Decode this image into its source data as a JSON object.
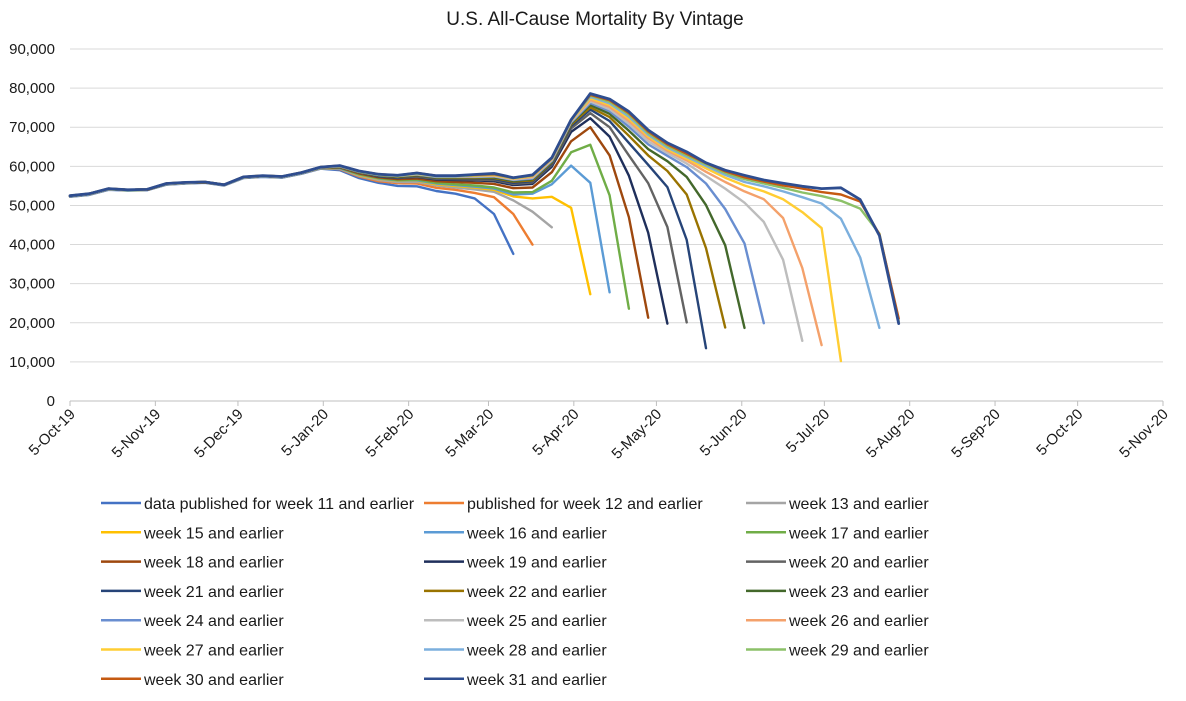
{
  "chart_data": {
    "type": "line",
    "title": "U.S. All-Cause Mortality By Vintage",
    "xlabel": "",
    "ylabel": "",
    "ylim": [
      0,
      90000
    ],
    "y_ticks": [
      0,
      10000,
      20000,
      30000,
      40000,
      50000,
      60000,
      70000,
      80000,
      90000
    ],
    "y_tick_labels": [
      "0",
      "10,000",
      "20,000",
      "30,000",
      "40,000",
      "50,000",
      "60,000",
      "70,000",
      "80,000",
      "90,000"
    ],
    "x_range": [
      "2019-10-05",
      "2020-11-05"
    ],
    "x_ticks": [
      "2019-10-05",
      "2019-11-05",
      "2019-12-05",
      "2020-01-05",
      "2020-02-05",
      "2020-03-05",
      "2020-04-05",
      "2020-05-05",
      "2020-06-05",
      "2020-07-05",
      "2020-08-05",
      "2020-09-05",
      "2020-10-05",
      "2020-11-05"
    ],
    "x_tick_labels": [
      "5-Oct-19",
      "5-Nov-19",
      "5-Dec-19",
      "5-Jan-20",
      "5-Feb-20",
      "5-Mar-20",
      "5-Apr-20",
      "5-May-20",
      "5-Jun-20",
      "5-Jul-20",
      "5-Aug-20",
      "5-Sep-20",
      "5-Oct-20",
      "5-Nov-20"
    ],
    "grid": "horizontal",
    "legend_position": "bottom",
    "x_dates": [
      "2019-10-05",
      "2019-10-12",
      "2019-10-19",
      "2019-10-26",
      "2019-11-02",
      "2019-11-09",
      "2019-11-16",
      "2019-11-23",
      "2019-11-30",
      "2019-12-07",
      "2019-12-14",
      "2019-12-21",
      "2019-12-28",
      "2020-01-04",
      "2020-01-11",
      "2020-01-18",
      "2020-01-25",
      "2020-02-01",
      "2020-02-08",
      "2020-02-15",
      "2020-02-22",
      "2020-02-29",
      "2020-03-07",
      "2020-03-14",
      "2020-03-21",
      "2020-03-28",
      "2020-04-04",
      "2020-04-11",
      "2020-04-18",
      "2020-04-25",
      "2020-05-02",
      "2020-05-09",
      "2020-05-16",
      "2020-05-23",
      "2020-05-30",
      "2020-06-06",
      "2020-06-13",
      "2020-06-20",
      "2020-06-27",
      "2020-07-04",
      "2020-07-11",
      "2020-07-18",
      "2020-07-25",
      "2020-08-01"
    ],
    "common_values": [
      52500,
      53000,
      54300,
      54000,
      54100,
      55600,
      55900,
      56000,
      55300,
      57300,
      57600,
      57400,
      58400,
      59800,
      60200,
      58800,
      58000,
      57700,
      58300,
      57600,
      57600,
      57900,
      58200,
      57100,
      57800,
      62200,
      71900,
      78600
    ],
    "series": [
      {
        "name": "data published for week 11 and earlier",
        "color": "#4472c4",
        "width": 2.4,
        "values": [
          52200,
          52700,
          54000,
          53800,
          53900,
          55300,
          55600,
          55800,
          55100,
          57000,
          57300,
          57100,
          58100,
          59400,
          59000,
          57000,
          55800,
          55000,
          54900,
          53700,
          53000,
          51800,
          47800,
          37600
        ]
      },
      {
        "name": "published for week 12 and earlier",
        "color": "#ed7d31",
        "width": 2.4,
        "values": [
          52300,
          52800,
          54100,
          53900,
          54000,
          55400,
          55700,
          55900,
          55200,
          57100,
          57400,
          57200,
          58200,
          59500,
          59300,
          57400,
          56200,
          55700,
          55600,
          54500,
          54000,
          53200,
          52100,
          47800,
          40000
        ]
      },
      {
        "name": "week 13 and earlier",
        "color": "#a5a5a5",
        "width": 2.4,
        "values": [
          52300,
          52800,
          54100,
          53900,
          54000,
          55400,
          55700,
          55900,
          55200,
          57100,
          57400,
          57200,
          58200,
          59500,
          59400,
          57600,
          56500,
          56000,
          56000,
          55100,
          54600,
          54100,
          53500,
          51300,
          48400,
          44400
        ]
      },
      {
        "name": "week 15 and earlier",
        "color": "#ffc000",
        "width": 2.4,
        "values": [
          52300,
          52800,
          54100,
          53900,
          54000,
          55400,
          55700,
          55900,
          55200,
          57100,
          57400,
          57200,
          58200,
          59600,
          59500,
          57800,
          56800,
          56300,
          56300,
          55400,
          55000,
          54600,
          54000,
          52300,
          51800,
          52200,
          49400,
          27300
        ]
      },
      {
        "name": "week 16 and earlier",
        "color": "#5b9bd5",
        "width": 2.4,
        "values": [
          52300,
          52800,
          54100,
          53900,
          54000,
          55400,
          55700,
          55900,
          55200,
          57100,
          57400,
          57200,
          58200,
          59600,
          59500,
          57900,
          56900,
          56400,
          56400,
          55600,
          55200,
          54800,
          54300,
          52800,
          53000,
          55400,
          60200,
          55800,
          27800
        ]
      },
      {
        "name": "week 17 and earlier",
        "color": "#70ad47",
        "width": 2.4,
        "values": [
          52400,
          52900,
          54200,
          53900,
          54000,
          55500,
          55800,
          55900,
          55300,
          57200,
          57500,
          57300,
          58300,
          59600,
          59600,
          58000,
          57000,
          56500,
          56600,
          55800,
          55400,
          55100,
          54600,
          53300,
          53400,
          56300,
          63600,
          65500,
          52600,
          23600
        ]
      },
      {
        "name": "week 18 and earlier",
        "color": "#9e480e",
        "width": 2.4,
        "values": [
          52400,
          52900,
          54200,
          54000,
          54000,
          55500,
          55800,
          55900,
          55300,
          57200,
          57500,
          57300,
          58300,
          59700,
          59700,
          58200,
          57200,
          56700,
          56900,
          56200,
          56000,
          55800,
          55500,
          54400,
          54600,
          58500,
          66400,
          70000,
          62800,
          47000,
          21300
        ]
      },
      {
        "name": "week 19 and earlier",
        "color": "#1f2f5b",
        "width": 2.4,
        "values": [
          52400,
          52900,
          54200,
          54000,
          54100,
          55500,
          55800,
          56000,
          55300,
          57200,
          57500,
          57300,
          58300,
          59700,
          59800,
          58400,
          57400,
          57000,
          57300,
          56600,
          56500,
          56400,
          56200,
          55200,
          55500,
          59900,
          68800,
          72300,
          67600,
          57600,
          43000,
          19800
        ]
      },
      {
        "name": "week 20 and earlier",
        "color": "#636363",
        "width": 2.4,
        "values": [
          52400,
          52900,
          54200,
          54000,
          54100,
          55500,
          55800,
          56000,
          55300,
          57200,
          57500,
          57300,
          58300,
          59700,
          59800,
          58400,
          57500,
          57100,
          57400,
          56800,
          56700,
          56600,
          56500,
          55500,
          55900,
          60400,
          69700,
          73600,
          70000,
          62800,
          55700,
          44500,
          20100
        ]
      },
      {
        "name": "week 21 and earlier",
        "color": "#264478",
        "width": 2.4,
        "values": [
          52400,
          52900,
          54200,
          54000,
          54100,
          55500,
          55800,
          56000,
          55300,
          57200,
          57500,
          57300,
          58300,
          59700,
          59900,
          58500,
          57600,
          57200,
          57600,
          57000,
          56900,
          56900,
          56800,
          55800,
          56200,
          60700,
          70300,
          74500,
          71600,
          66000,
          60400,
          54700,
          41200,
          13500
        ]
      },
      {
        "name": "week 22 and earlier",
        "color": "#997300",
        "width": 2.4,
        "values": [
          52400,
          52900,
          54200,
          54000,
          54100,
          55500,
          55800,
          56000,
          55300,
          57200,
          57500,
          57300,
          58300,
          59700,
          59900,
          58500,
          57700,
          57300,
          57700,
          57100,
          57000,
          57000,
          57000,
          56100,
          56400,
          61000,
          70700,
          75100,
          72600,
          67800,
          62800,
          58800,
          52800,
          39100,
          18800
        ]
      },
      {
        "name": "week 23 and earlier",
        "color": "#43682b",
        "width": 2.4,
        "values": [
          52400,
          52900,
          54200,
          54000,
          54100,
          55500,
          55800,
          56000,
          55300,
          57200,
          57500,
          57300,
          58300,
          59700,
          60000,
          58600,
          57700,
          57400,
          57800,
          57200,
          57200,
          57200,
          57200,
          56300,
          56700,
          61200,
          71000,
          75700,
          73400,
          69100,
          64400,
          61300,
          57300,
          50100,
          39800,
          18700
        ]
      },
      {
        "name": "week 24 and earlier",
        "color": "#698ed0",
        "width": 2.4,
        "values": [
          52400,
          52900,
          54200,
          54000,
          54100,
          55500,
          55800,
          56000,
          55300,
          57200,
          57500,
          57300,
          58300,
          59700,
          60000,
          58600,
          57800,
          57500,
          57900,
          57300,
          57300,
          57300,
          57400,
          56500,
          56900,
          61400,
          71200,
          76200,
          74100,
          70100,
          65600,
          62700,
          59800,
          55600,
          49100,
          40300,
          19900
        ]
      },
      {
        "name": "week 25 and earlier",
        "color": "#bdbdbd",
        "width": 2.4,
        "values": [
          52400,
          52900,
          54200,
          54000,
          54100,
          55500,
          55800,
          56000,
          55300,
          57200,
          57500,
          57300,
          58300,
          59700,
          60000,
          58700,
          57800,
          57500,
          58000,
          57400,
          57400,
          57400,
          57500,
          56600,
          57100,
          61600,
          71400,
          76600,
          74600,
          70900,
          66400,
          63400,
          60700,
          57500,
          54300,
          50700,
          45800,
          36100,
          15400
        ]
      },
      {
        "name": "week 26 and earlier",
        "color": "#f4a16b",
        "width": 2.4,
        "values": [
          52500,
          53000,
          54300,
          54000,
          54100,
          55600,
          55900,
          56000,
          55300,
          57300,
          57600,
          57400,
          58400,
          59800,
          60100,
          58700,
          57900,
          57600,
          58100,
          57500,
          57500,
          57500,
          57700,
          56800,
          57300,
          61800,
          71600,
          77000,
          75200,
          71600,
          67200,
          64000,
          61500,
          58600,
          56000,
          53600,
          51600,
          46800,
          34000,
          14300
        ]
      },
      {
        "name": "week 27 and earlier",
        "color": "#ffcd33",
        "width": 2.4,
        "values": [
          52500,
          53000,
          54300,
          54000,
          54100,
          55600,
          55900,
          56000,
          55300,
          57300,
          57600,
          57400,
          58400,
          59800,
          60100,
          58700,
          57900,
          57600,
          58100,
          57500,
          57500,
          57600,
          57800,
          56900,
          57500,
          61900,
          71700,
          77400,
          75700,
          72200,
          67700,
          64400,
          62000,
          59500,
          57100,
          55100,
          53600,
          51600,
          48300,
          44200,
          10200
        ]
      },
      {
        "name": "week 28 and earlier",
        "color": "#7cafdd",
        "width": 2.4,
        "values": [
          52500,
          53000,
          54300,
          54000,
          54100,
          55600,
          55900,
          56000,
          55300,
          57300,
          57600,
          57400,
          58400,
          59800,
          60100,
          58700,
          57900,
          57600,
          58200,
          57500,
          57500,
          57700,
          57900,
          57000,
          57600,
          62000,
          71800,
          77800,
          76100,
          72700,
          68100,
          64800,
          62400,
          60100,
          57800,
          56000,
          54900,
          53600,
          52100,
          50500,
          46600,
          36700,
          18700
        ]
      },
      {
        "name": "week 29 and earlier",
        "color": "#8cc168",
        "width": 2.4,
        "values": [
          52500,
          53000,
          54300,
          54000,
          54100,
          55600,
          55900,
          56000,
          55300,
          57300,
          57600,
          57400,
          58400,
          59800,
          60100,
          58700,
          57900,
          57600,
          58200,
          57500,
          57500,
          57700,
          57900,
          57000,
          57600,
          62100,
          71800,
          78100,
          76500,
          73200,
          68500,
          65200,
          62800,
          60500,
          58300,
          56700,
          55600,
          54500,
          53300,
          52400,
          51200,
          49200,
          42800,
          20400
        ]
      },
      {
        "name": "week 30 and earlier",
        "color": "#c55a11",
        "width": 2.4,
        "values": [
          52500,
          53000,
          54300,
          54000,
          54100,
          55600,
          55900,
          56000,
          55300,
          57300,
          57600,
          57400,
          58400,
          59800,
          60200,
          58800,
          58000,
          57700,
          58300,
          57600,
          57600,
          57800,
          58000,
          57100,
          57700,
          62100,
          71900,
          78300,
          76900,
          73600,
          68900,
          65600,
          63200,
          60800,
          58700,
          57200,
          56100,
          55100,
          54300,
          53400,
          52800,
          51000,
          42600,
          21100
        ]
      },
      {
        "name": "week 31 and earlier",
        "color": "#2e4d8f",
        "width": 2.8,
        "values": [
          52500,
          53000,
          54300,
          54000,
          54100,
          55600,
          55900,
          56000,
          55300,
          57300,
          57600,
          57400,
          58400,
          59800,
          60200,
          58800,
          58000,
          57700,
          58300,
          57600,
          57600,
          57900,
          58200,
          57100,
          57800,
          62200,
          71900,
          78600,
          77200,
          74000,
          69300,
          66000,
          63700,
          60900,
          59000,
          57700,
          56500,
          55700,
          54900,
          54300,
          54500,
          51500,
          42300,
          19800
        ]
      }
    ]
  }
}
